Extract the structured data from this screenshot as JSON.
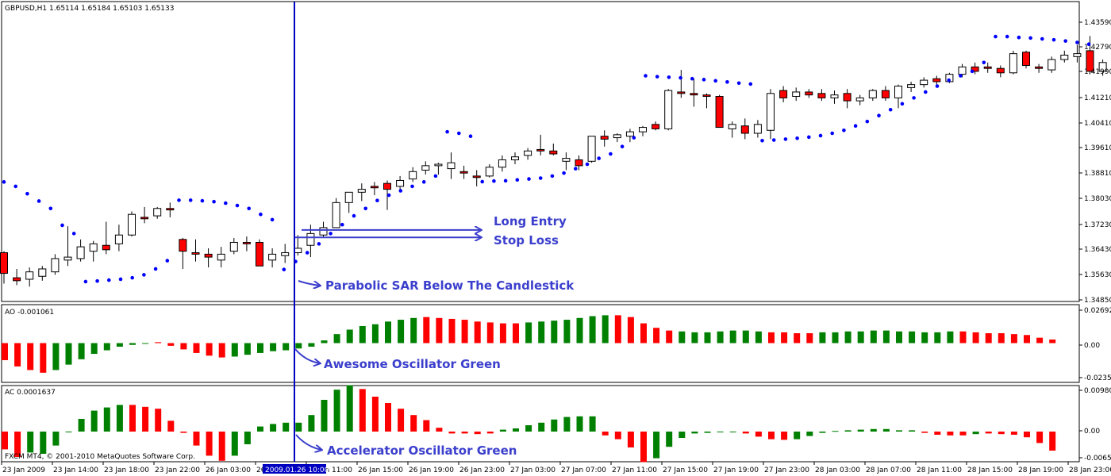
{
  "chart_data": {
    "type": "candlestick",
    "symbol_header": "GBPUSD,H1  1.65114 1.65184 1.65103 1.65133",
    "copyright": "FXCM MT4, © 2001-2010 MetaQuotes Software Corp.",
    "price_axis": {
      "ylim": [
        1.3485,
        1.4432
      ],
      "ticks": [
        "1.43590",
        "1.42790",
        "1.41990",
        "1.41210",
        "1.40410",
        "1.39610",
        "1.38810",
        "1.38030",
        "1.37230",
        "1.36430",
        "1.35630",
        "1.34850"
      ]
    },
    "time_axis": {
      "ticks": [
        "23 Jan 2009",
        "23 Jan 14:00",
        "23 Jan 18:00",
        "23 Jan 22:00",
        "26 Jan 03:00",
        "26",
        "26 Jan 11:00",
        "26 Jan 15:00",
        "26 Jan 19:00",
        "26 Jan 23:00",
        "27 Jan 03:00",
        "27 Jan 07:00",
        "27 Jan 11:00",
        "27 Jan 15:00",
        "27 Jan 19:00",
        "27 Jan 23:00",
        "28 Jan 03:00",
        "28 Jan 07:00",
        "28 Jan 11:00",
        "28 Jan 15:00",
        "28 Jan 19:00",
        "28 Jan 23:00"
      ],
      "cursor_label": "2009.01.26 10:00"
    },
    "candles": [
      [
        1.3645,
        1.365,
        1.354,
        1.3575
      ],
      [
        1.356,
        1.359,
        1.3535,
        1.355
      ],
      [
        1.3555,
        1.3595,
        1.353,
        1.358
      ],
      [
        1.3565,
        1.36,
        1.355,
        1.359
      ],
      [
        1.358,
        1.364,
        1.357,
        1.3625
      ],
      [
        1.362,
        1.3735,
        1.36,
        1.363
      ],
      [
        1.3625,
        1.369,
        1.3615,
        1.3665
      ],
      [
        1.365,
        1.3685,
        1.3615,
        1.3675
      ],
      [
        1.367,
        1.375,
        1.364,
        1.3655
      ],
      [
        1.3675,
        1.374,
        1.365,
        1.3705
      ],
      [
        1.3705,
        1.3785,
        1.37,
        1.3775
      ],
      [
        1.3765,
        1.38,
        1.3745,
        1.376
      ],
      [
        1.377,
        1.38,
        1.376,
        1.3795
      ],
      [
        1.3795,
        1.3815,
        1.3765,
        1.379
      ],
      [
        1.369,
        1.3695,
        1.359,
        1.365
      ],
      [
        1.3645,
        1.369,
        1.3615,
        1.364
      ],
      [
        1.364,
        1.366,
        1.3595,
        1.363
      ],
      [
        1.362,
        1.3665,
        1.3595,
        1.364
      ],
      [
        1.365,
        1.3695,
        1.364,
        1.368
      ],
      [
        1.368,
        1.37,
        1.365,
        1.3675
      ],
      [
        1.368,
        1.369,
        1.36,
        1.36
      ],
      [
        1.362,
        1.366,
        1.3595,
        1.364
      ],
      [
        1.3635,
        1.3675,
        1.361,
        1.3645
      ],
      [
        1.3645,
        1.3705,
        1.3635,
        1.366
      ],
      [
        1.367,
        1.374,
        1.363,
        1.371
      ],
      [
        1.3705,
        1.375,
        1.3695,
        1.373
      ],
      [
        1.373,
        1.383,
        1.373,
        1.3815
      ],
      [
        1.3815,
        1.385,
        1.378,
        1.385
      ],
      [
        1.385,
        1.388,
        1.382,
        1.386
      ],
      [
        1.387,
        1.3885,
        1.384,
        1.3865
      ],
      [
        1.388,
        1.389,
        1.379,
        1.386
      ],
      [
        1.387,
        1.3905,
        1.386,
        1.389
      ],
      [
        1.3895,
        1.3935,
        1.3885,
        1.392
      ],
      [
        1.3925,
        1.3955,
        1.391,
        1.394
      ],
      [
        1.394,
        1.395,
        1.391,
        1.3945
      ],
      [
        1.393,
        1.3985,
        1.3895,
        1.395
      ],
      [
        1.392,
        1.394,
        1.3895,
        1.3915
      ],
      [
        1.3905,
        1.3925,
        1.387,
        1.39
      ],
      [
        1.3905,
        1.3945,
        1.39,
        1.3935
      ],
      [
        1.3935,
        1.3975,
        1.392,
        1.396
      ],
      [
        1.396,
        1.3985,
        1.3945,
        1.397
      ],
      [
        1.3975,
        1.4,
        1.396,
        1.399
      ],
      [
        1.3995,
        1.4045,
        1.3975,
        1.399
      ],
      [
        1.399,
        1.4015,
        1.3975,
        1.398
      ],
      [
        1.3955,
        1.3985,
        1.3925,
        1.3965
      ],
      [
        1.396,
        1.3975,
        1.3925,
        1.394
      ],
      [
        1.3955,
        1.404,
        1.395,
        1.404
      ],
      [
        1.404,
        1.406,
        1.4005,
        1.403
      ],
      [
        1.4035,
        1.405,
        1.402,
        1.4045
      ],
      [
        1.404,
        1.4065,
        1.402,
        1.4055
      ],
      [
        1.4055,
        1.4075,
        1.404,
        1.407
      ],
      [
        1.408,
        1.409,
        1.406,
        1.4065
      ],
      [
        1.4065,
        1.42,
        1.406,
        1.4195
      ],
      [
        1.419,
        1.4265,
        1.417,
        1.4185
      ],
      [
        1.4185,
        1.4235,
        1.414,
        1.418
      ],
      [
        1.418,
        1.4185,
        1.4135,
        1.4175
      ],
      [
        1.4175,
        1.418,
        1.407,
        1.407
      ],
      [
        1.4065,
        1.409,
        1.4035,
        1.408
      ],
      [
        1.4075,
        1.41,
        1.403,
        1.405
      ],
      [
        1.405,
        1.4095,
        1.4035,
        1.408
      ],
      [
        1.406,
        1.42,
        1.403,
        1.4185
      ],
      [
        1.4195,
        1.421,
        1.4155,
        1.417
      ],
      [
        1.4175,
        1.4205,
        1.416,
        1.419
      ],
      [
        1.419,
        1.42,
        1.417,
        1.418
      ],
      [
        1.4185,
        1.42,
        1.416,
        1.417
      ],
      [
        1.417,
        1.4195,
        1.415,
        1.418
      ],
      [
        1.4185,
        1.42,
        1.4135,
        1.416
      ],
      [
        1.416,
        1.418,
        1.4145,
        1.417
      ],
      [
        1.417,
        1.42,
        1.416,
        1.4195
      ],
      [
        1.4195,
        1.421,
        1.416,
        1.417
      ],
      [
        1.417,
        1.4215,
        1.4135,
        1.421
      ],
      [
        1.4205,
        1.4225,
        1.419,
        1.4215
      ],
      [
        1.4215,
        1.424,
        1.4205,
        1.423
      ],
      [
        1.4235,
        1.4245,
        1.421,
        1.4225
      ],
      [
        1.4225,
        1.4255,
        1.422,
        1.425
      ],
      [
        1.425,
        1.4285,
        1.424,
        1.4275
      ],
      [
        1.4275,
        1.429,
        1.425,
        1.426
      ],
      [
        1.4275,
        1.429,
        1.4255,
        1.427
      ],
      [
        1.427,
        1.428,
        1.424,
        1.4255
      ],
      [
        1.4255,
        1.433,
        1.425,
        1.432
      ],
      [
        1.4325,
        1.433,
        1.427,
        1.428
      ],
      [
        1.4275,
        1.4285,
        1.4255,
        1.427
      ],
      [
        1.4265,
        1.431,
        1.4255,
        1.43
      ],
      [
        1.43,
        1.433,
        1.429,
        1.4315
      ],
      [
        1.431,
        1.435,
        1.429,
        1.432
      ],
      [
        1.433,
        1.438,
        1.425,
        1.426
      ],
      [
        1.426,
        1.43,
        1.4245,
        1.429
      ],
      [
        1.429,
        1.432,
        1.428,
        1.4305
      ],
      [
        1.4305,
        1.434,
        1.43,
        1.433
      ],
      [
        1.433,
        1.434,
        1.431,
        1.432
      ],
      [
        1.4315,
        1.433,
        1.4305,
        1.432
      ],
      [
        1.431,
        1.4325,
        1.423,
        1.423
      ],
      [
        1.422,
        1.423,
        1.4165,
        1.42
      ],
      [
        1.4205,
        1.425,
        1.4175,
        1.424
      ],
      [
        1.4235,
        1.4255,
        1.4225,
        1.4235
      ]
    ],
    "sar": [
      [
        0,
        1.3885
      ],
      [
        1,
        1.387
      ],
      [
        2,
        1.3845
      ],
      [
        3,
        1.382
      ],
      [
        4,
        1.3795
      ],
      [
        5,
        1.3738
      ],
      [
        6,
        1.371
      ],
      [
        7,
        1.3547
      ],
      [
        8,
        1.3549
      ],
      [
        9,
        1.3552
      ],
      [
        10,
        1.3555
      ],
      [
        11,
        1.356
      ],
      [
        12,
        1.357
      ],
      [
        13,
        1.359
      ],
      [
        14,
        1.3618
      ],
      [
        15,
        1.3823
      ],
      [
        16,
        1.3823
      ],
      [
        17,
        1.3821
      ],
      [
        18,
        1.3818
      ],
      [
        19,
        1.3813
      ],
      [
        20,
        1.3805
      ],
      [
        21,
        1.3795
      ],
      [
        22,
        1.3775
      ],
      [
        23,
        1.3757
      ],
      [
        24,
        1.3588
      ],
      [
        25,
        1.3615
      ],
      [
        26,
        1.3645
      ],
      [
        27,
        1.3675
      ],
      [
        28,
        1.371
      ],
      [
        29,
        1.374
      ],
      [
        30,
        1.377
      ],
      [
        31,
        1.3795
      ],
      [
        32,
        1.3822
      ],
      [
        33,
        1.384
      ],
      [
        34,
        1.3855
      ],
      [
        35,
        1.387
      ],
      [
        36,
        1.3885
      ],
      [
        37,
        1.3905
      ],
      [
        38,
        1.4055
      ],
      [
        39,
        1.405
      ],
      [
        40,
        1.404
      ],
      [
        41,
        1.3886
      ],
      [
        42,
        1.3888
      ],
      [
        43,
        1.3889
      ],
      [
        44,
        1.3892
      ],
      [
        45,
        1.3895
      ],
      [
        46,
        1.3898
      ],
      [
        47,
        1.3905
      ],
      [
        48,
        1.3915
      ],
      [
        49,
        1.393
      ],
      [
        50,
        1.3945
      ],
      [
        51,
        1.3965
      ],
      [
        52,
        1.398
      ],
      [
        53,
        1.4005
      ],
      [
        54,
        1.4035
      ],
      [
        55,
        1.4245
      ],
      [
        56,
        1.4242
      ],
      [
        57,
        1.424
      ],
      [
        58,
        1.4238
      ],
      [
        59,
        1.4235
      ],
      [
        60,
        1.4232
      ],
      [
        61,
        1.4228
      ],
      [
        62,
        1.4224
      ],
      [
        63,
        1.422
      ],
      [
        64,
        1.4217
      ],
      [
        65,
        1.4025
      ],
      [
        66,
        1.4027
      ],
      [
        67,
        1.403
      ],
      [
        68,
        1.4033
      ],
      [
        69,
        1.4037
      ],
      [
        70,
        1.4042
      ],
      [
        71,
        1.405
      ],
      [
        72,
        1.406
      ],
      [
        73,
        1.4075
      ],
      [
        74,
        1.409
      ],
      [
        75,
        1.411
      ],
      [
        76,
        1.413
      ],
      [
        77,
        1.415
      ],
      [
        78,
        1.417
      ],
      [
        79,
        1.419
      ],
      [
        80,
        1.421
      ],
      [
        81,
        1.423
      ],
      [
        82,
        1.4245
      ],
      [
        83,
        1.426
      ],
      [
        84,
        1.429
      ],
      [
        85,
        1.4378
      ],
      [
        86,
        1.4378
      ],
      [
        87,
        1.4375
      ],
      [
        88,
        1.4373
      ],
      [
        89,
        1.437
      ],
      [
        90,
        1.4367
      ],
      [
        91,
        1.4363
      ],
      [
        92,
        1.4358
      ],
      [
        93,
        1.4352
      ]
    ],
    "ao": {
      "label": "AO -0.001061",
      "ylim": [
        -0.0042,
        0.0034
      ],
      "ticks": [
        "0.02692",
        "0.00",
        "-0.02352"
      ],
      "values": [
        -0.0019,
        -0.0026,
        -0.003,
        -0.0033,
        -0.003,
        -0.0024,
        -0.0018,
        -0.0012,
        -0.0008,
        -0.0004,
        -0.0002,
        0.0,
        0.0001,
        -0.0003,
        -0.0007,
        -0.0011,
        -0.0014,
        -0.0016,
        -0.0015,
        -0.0013,
        -0.0011,
        -0.0009,
        -0.0008,
        -0.0006,
        -0.0004,
        0.0003,
        0.001,
        0.0015,
        0.0019,
        0.0021,
        0.0024,
        0.0026,
        0.0028,
        0.0029,
        0.0028,
        0.0027,
        0.0026,
        0.0024,
        0.0023,
        0.0022,
        0.0022,
        0.0023,
        0.0024,
        0.0025,
        0.0026,
        0.0028,
        0.003,
        0.0031,
        0.0031,
        0.0029,
        0.0022,
        0.0017,
        0.0014,
        0.0013,
        0.0012,
        0.0012,
        0.0013,
        0.0014,
        0.0014,
        0.0013,
        0.0012,
        0.0012,
        0.0011,
        0.0011,
        0.0012,
        0.0012,
        0.0013,
        0.0013,
        0.0014,
        0.0014,
        0.0013,
        0.0013,
        0.0012,
        0.0012,
        0.0013,
        0.0013,
        0.0012,
        0.0011,
        0.0011,
        0.001,
        0.0009,
        0.0006,
        0.0004
      ],
      "colors": [
        "red",
        "red",
        "red",
        "red",
        "green",
        "green",
        "green",
        "green",
        "green",
        "green",
        "green",
        "green",
        "red",
        "red",
        "red",
        "red",
        "red",
        "red",
        "green",
        "green",
        "green",
        "green",
        "green",
        "green",
        "green",
        "green",
        "green",
        "green",
        "green",
        "green",
        "green",
        "green",
        "green",
        "red",
        "red",
        "red",
        "red",
        "red",
        "red",
        "red",
        "red",
        "green",
        "green",
        "green",
        "green",
        "green",
        "green",
        "green",
        "red",
        "red",
        "red",
        "red",
        "red",
        "green",
        "green",
        "green",
        "green",
        "green",
        "green",
        "green",
        "red",
        "red",
        "red",
        "red",
        "green",
        "green",
        "green",
        "green",
        "green",
        "green",
        "green",
        "green",
        "green",
        "green",
        "green",
        "red",
        "red",
        "red",
        "red",
        "red",
        "red",
        "red",
        "red"
      ]
    },
    "ac": {
      "label": "AC 0.0001637",
      "ylim": [
        -0.0045,
        0.007
      ],
      "ticks": [
        "0.00980",
        "0.00",
        "-0.00658"
      ],
      "values": [
        -0.0028,
        -0.004,
        -0.0033,
        -0.0035,
        -0.0022,
        0.0,
        0.002,
        0.0033,
        0.0038,
        0.0042,
        0.0042,
        0.0039,
        0.0036,
        0.0017,
        -0.0002,
        -0.0022,
        -0.0038,
        -0.0046,
        -0.0038,
        -0.002,
        0.0008,
        0.0012,
        0.0014,
        0.0014,
        0.0026,
        0.005,
        0.0066,
        0.0073,
        0.0067,
        0.0055,
        0.0045,
        0.0036,
        0.0026,
        0.0018,
        0.0006,
        -0.0003,
        -0.0003,
        -0.0004,
        -0.0003,
        0.0003,
        0.0005,
        0.001,
        0.0014,
        0.0019,
        0.0023,
        0.0024,
        0.0024,
        -0.0006,
        -0.0012,
        -0.0025,
        -0.0048,
        -0.0042,
        -0.0024,
        -0.001,
        -0.0003,
        -0.0002,
        -0.0001,
        -0.0001,
        -0.0003,
        -0.0008,
        -0.0012,
        -0.0013,
        -0.0012,
        -0.0007,
        -0.0002,
        0.0001,
        0.0002,
        0.0003,
        0.0004,
        0.0004,
        0.0002,
        0.0002,
        -0.0002,
        -0.0005,
        -0.0006,
        -0.0006,
        -0.0004,
        -0.0003,
        -0.0004,
        -0.0005,
        -0.0009,
        -0.0018,
        -0.003
      ],
      "colors": [
        "red",
        "red",
        "green",
        "green",
        "green",
        "green",
        "green",
        "green",
        "green",
        "green",
        "red",
        "red",
        "red",
        "red",
        "red",
        "red",
        "red",
        "red",
        "green",
        "green",
        "green",
        "green",
        "green",
        "green",
        "green",
        "green",
        "green",
        "green",
        "red",
        "red",
        "red",
        "red",
        "red",
        "red",
        "red",
        "red",
        "red",
        "red",
        "red",
        "green",
        "green",
        "green",
        "green",
        "green",
        "green",
        "green",
        "green",
        "red",
        "red",
        "red",
        "red",
        "green",
        "green",
        "green",
        "green",
        "green",
        "green",
        "green",
        "red",
        "red",
        "red",
        "red",
        "green",
        "green",
        "green",
        "green",
        "green",
        "green",
        "green",
        "green",
        "green",
        "green",
        "red",
        "red",
        "red",
        "red",
        "green",
        "red",
        "red",
        "red",
        "red",
        "red",
        "red"
      ]
    },
    "annotations": {
      "long_entry": "Long Entry",
      "stop_loss": "Stop Loss",
      "sar_note": "Parabolic SAR Below The Candlestick",
      "ao_note": "Awesome Oscillator Green",
      "ac_note": "Accelerator Oscillator Green",
      "entry_price": 1.3722,
      "stop_price": 1.3697
    },
    "colors": {
      "bull_fill": "#ffffff",
      "bear_fill": "#ff0000",
      "candle_outline": "#000000",
      "sar": "#0000ff",
      "osc_green": "#008000",
      "osc_red": "#ff0000",
      "cursor": "#0000c0",
      "annotation": "#3b3fcc"
    }
  }
}
